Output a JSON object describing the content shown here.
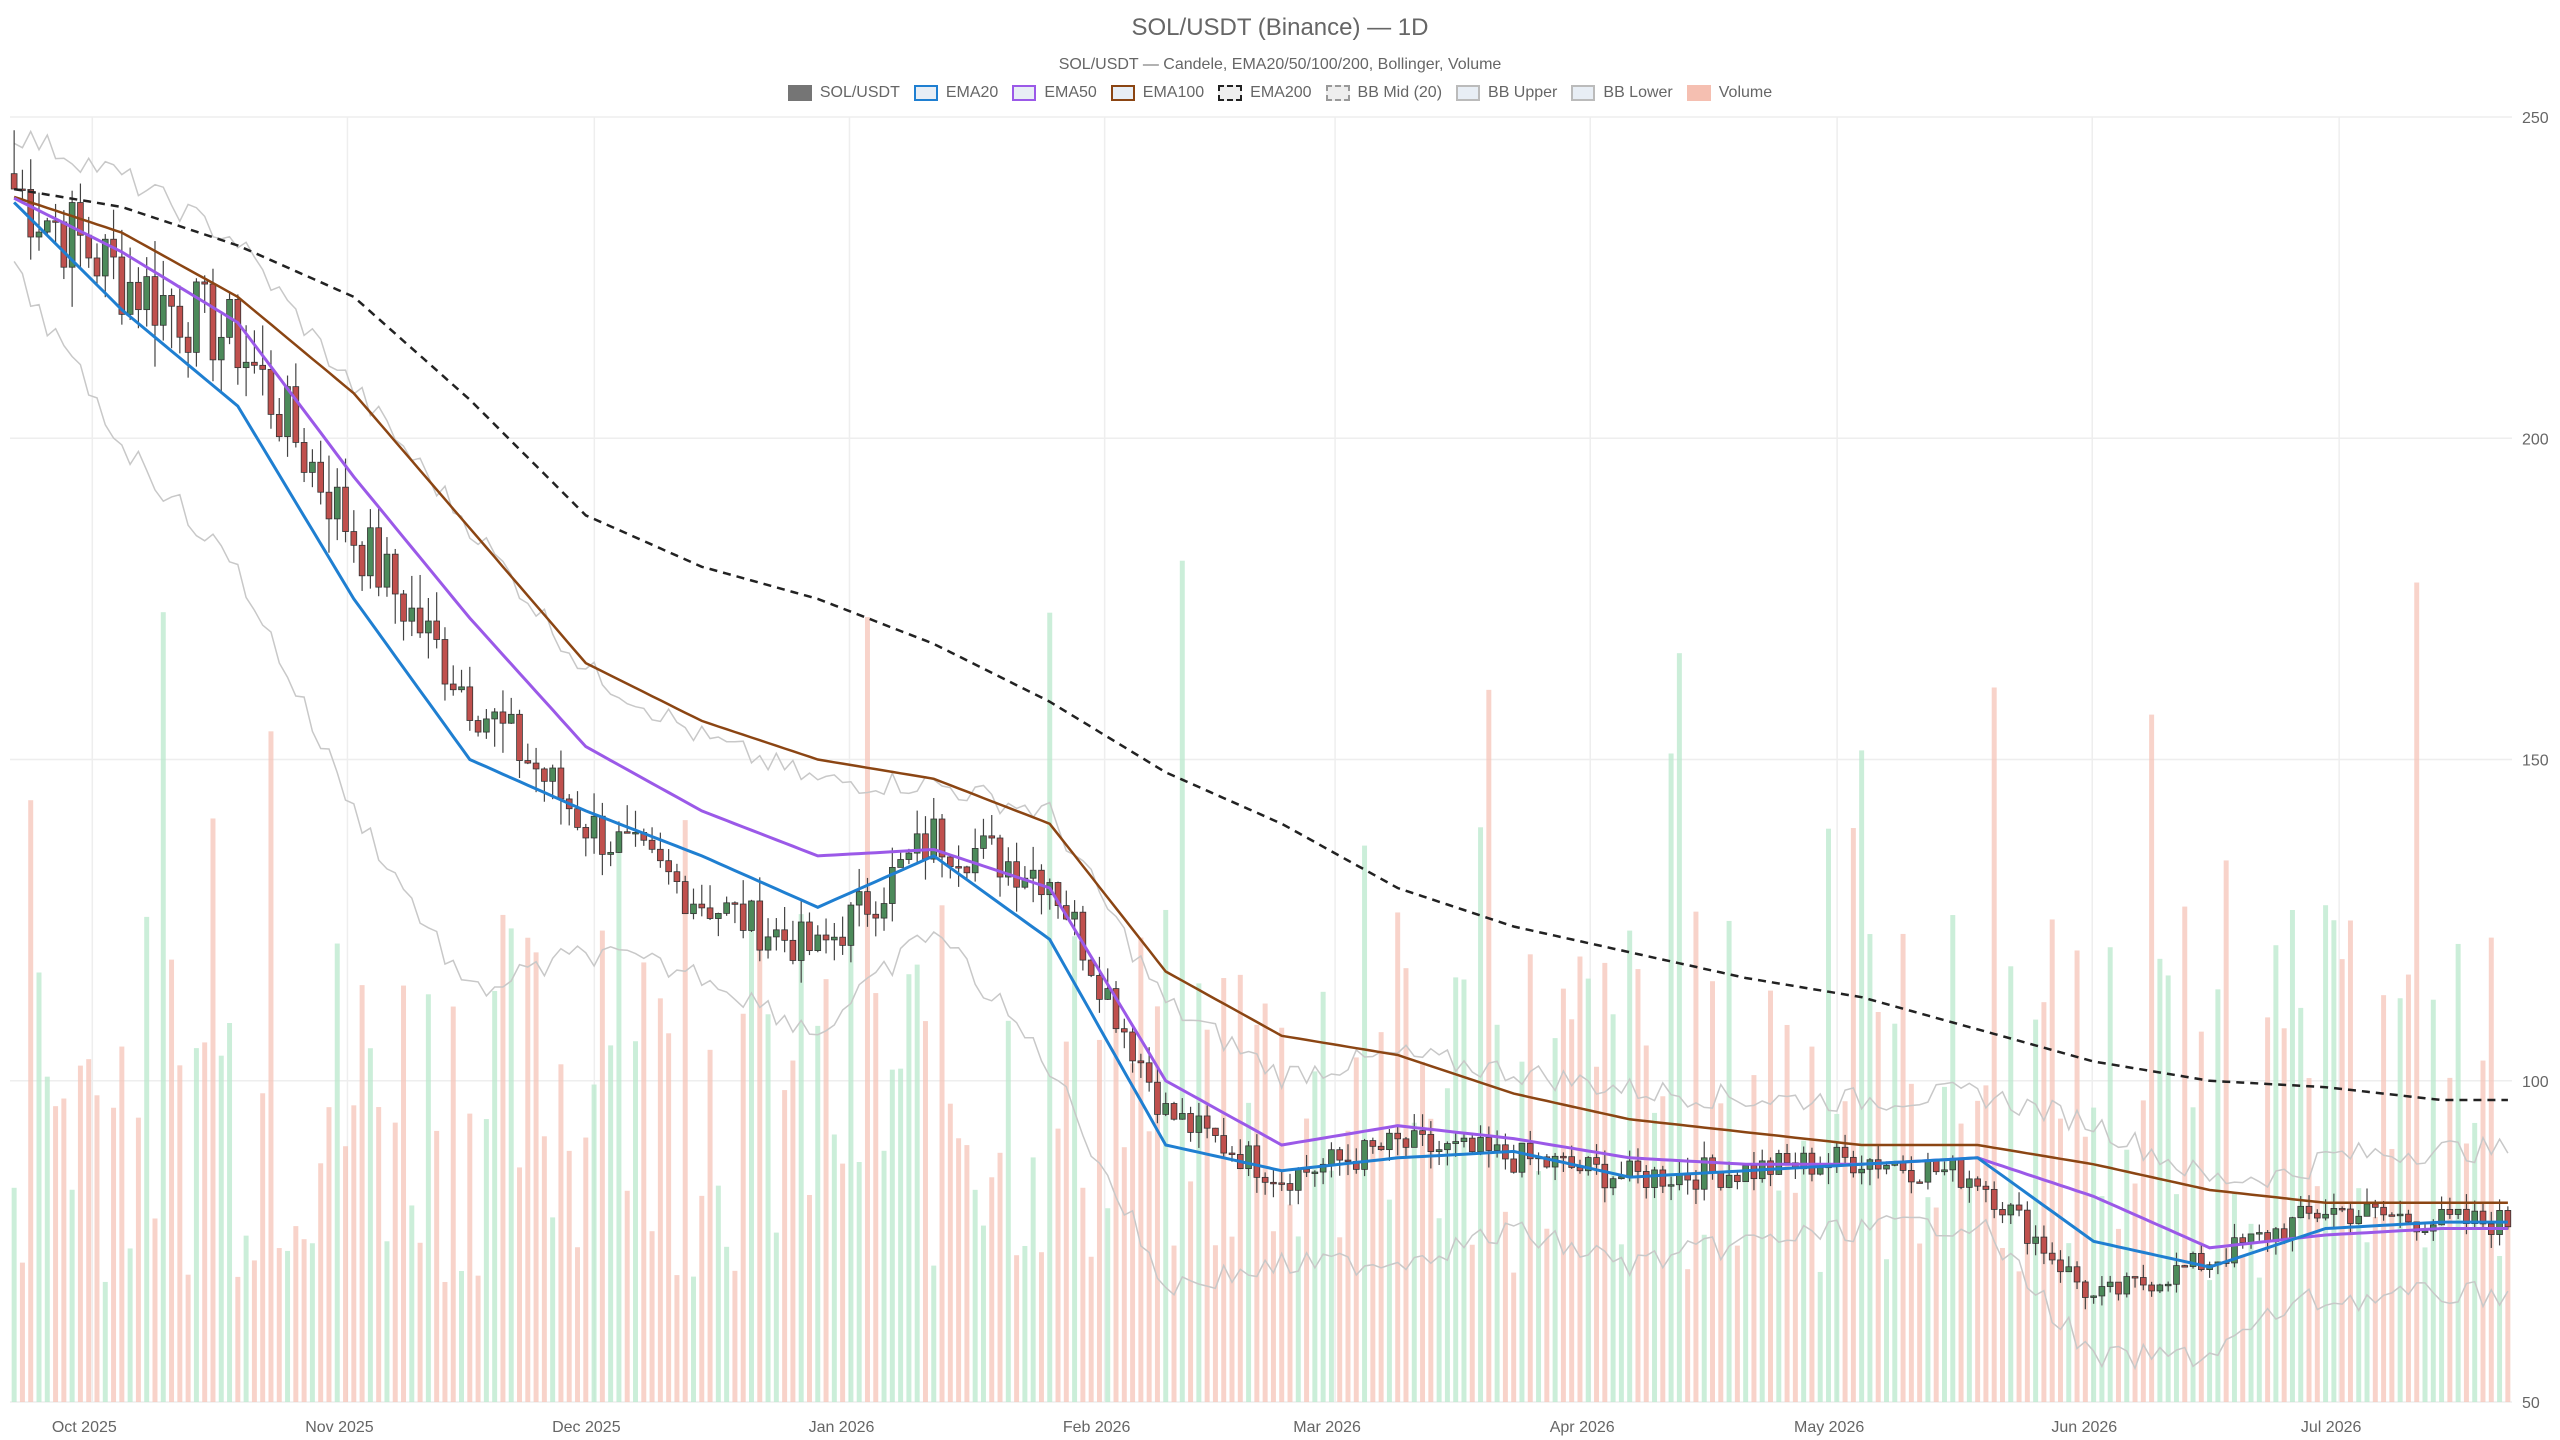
{
  "chart_data": {
    "type": "candlestick",
    "title": "SOL/USDT (Binance) — 1D",
    "subtitle": "SOL/USDT — Candele, EMA20/50/100/200, Bollinger, Volume",
    "ylim": [
      50,
      250
    ],
    "y_ticks": [
      "250",
      "200",
      "150",
      "100",
      "50"
    ],
    "y_axis_side": "right",
    "x_ticks": [
      "Oct 2025",
      "Nov 2025",
      "Dec 2025",
      "Jan 2026",
      "Feb 2026",
      "Mar 2026",
      "Apr 2026",
      "May 2026",
      "Jun 2026",
      "Jul 2026"
    ],
    "grid": true,
    "legend_position": "top-center",
    "legend": [
      {
        "label": "SOL/USDT",
        "color": "#666666",
        "style": "fill"
      },
      {
        "label": "EMA20",
        "color": "#1f7fd1",
        "style": "line"
      },
      {
        "label": "EMA50",
        "color": "#9b59e8",
        "style": "line"
      },
      {
        "label": "EMA100",
        "color": "#8b4513",
        "style": "line"
      },
      {
        "label": "EMA200",
        "color": "#222222",
        "style": "dashed"
      },
      {
        "label": "BB Mid (20)",
        "color": "#999999",
        "style": "dashed"
      },
      {
        "label": "BB Upper",
        "color": "#bbbbbb",
        "style": "line"
      },
      {
        "label": "BB Lower",
        "color": "#bbbbbb",
        "style": "line"
      },
      {
        "label": "Volume",
        "color": "#f4b8a8",
        "style": "fill"
      }
    ],
    "colors": {
      "up": "#4c8a5a",
      "down": "#c0504d",
      "volume_up": "#b9e8cc",
      "volume_down": "#f6c4b8"
    },
    "dates": [
      "2025-09-21",
      "2025-10-05",
      "2025-10-19",
      "2025-11-02",
      "2025-11-16",
      "2025-11-30",
      "2025-12-14",
      "2025-12-28",
      "2026-01-11",
      "2026-01-25",
      "2026-02-08",
      "2026-02-22",
      "2026-03-08",
      "2026-03-22",
      "2026-04-05",
      "2026-04-19",
      "2026-05-03",
      "2026-05-17",
      "2026-05-31",
      "2026-06-14",
      "2026-06-28",
      "2026-07-12"
    ],
    "series": [
      {
        "name": "SOL/USDT",
        "close": [
          240,
          225,
          215,
          185,
          160,
          140,
          128,
          120,
          138,
          132,
          95,
          85,
          90,
          88,
          85,
          86,
          88,
          85,
          66,
          72,
          80,
          78
        ]
      },
      {
        "name": "EMA20",
        "values": [
          238,
          220,
          205,
          175,
          150,
          142,
          135,
          127,
          135,
          122,
          90,
          86,
          88,
          89,
          85,
          86,
          87,
          88,
          75,
          71,
          77,
          78
        ]
      },
      {
        "name": "EMA50",
        "values": [
          238,
          229,
          218,
          194,
          172,
          152,
          142,
          135,
          136,
          130,
          100,
          90,
          93,
          91,
          88,
          87,
          87,
          88,
          82,
          74,
          76,
          77
        ]
      },
      {
        "name": "EMA100",
        "values": [
          238,
          232,
          222,
          207,
          186,
          165,
          156,
          150,
          147,
          140,
          117,
          107,
          104,
          98,
          94,
          92,
          90,
          90,
          87,
          83,
          81,
          81
        ]
      },
      {
        "name": "EMA200",
        "values": [
          239,
          236,
          230,
          222,
          206,
          188,
          180,
          175,
          168,
          159,
          148,
          140,
          130,
          124,
          120,
          116,
          113,
          108,
          103,
          100,
          99,
          97
        ]
      }
    ]
  }
}
